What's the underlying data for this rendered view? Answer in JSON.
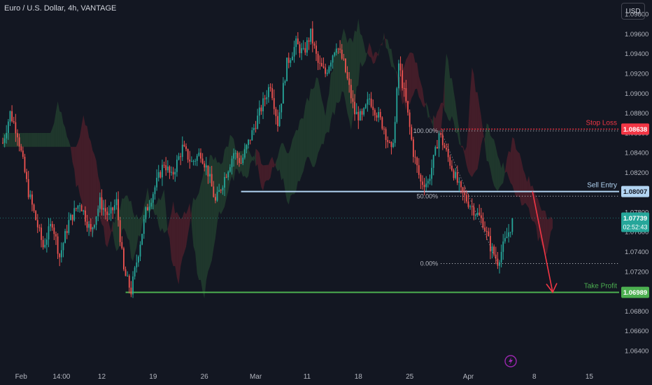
{
  "header": {
    "title": "Euro / U.S. Dollar, 4h, VANTAGE",
    "currency_button": "USD"
  },
  "chart_data": {
    "type": "candlestick",
    "symbol": "Euro / U.S. Dollar",
    "interval": "4h",
    "broker": "VANTAGE",
    "ylim": [
      1.063,
      1.099
    ],
    "y_ticks": [
      "1.09800",
      "1.09600",
      "1.09400",
      "1.09200",
      "1.09000",
      "1.08800",
      "1.08600",
      "1.08400",
      "1.08200",
      "1.08000",
      "1.07800",
      "1.07600",
      "1.07400",
      "1.07200",
      "1.07000",
      "1.06800",
      "1.06600",
      "1.06400"
    ],
    "x_tick_labels": [
      "Feb",
      "14:00",
      "12",
      "19",
      "26",
      "Mar",
      "11",
      "18",
      "25",
      "Apr",
      "8",
      "15"
    ],
    "price_path": [
      [
        1.085,
        0
      ],
      [
        1.088,
        4
      ],
      [
        1.086,
        8
      ],
      [
        1.08,
        14
      ],
      [
        1.0745,
        22
      ],
      [
        1.077,
        27
      ],
      [
        1.0735,
        31
      ],
      [
        1.077,
        36
      ],
      [
        1.079,
        42
      ],
      [
        1.076,
        48
      ],
      [
        1.079,
        53
      ],
      [
        1.0775,
        58
      ],
      [
        1.079,
        62
      ],
      [
        1.072,
        66
      ],
      [
        1.07,
        70
      ],
      [
        1.074,
        74
      ],
      [
        1.078,
        78
      ],
      [
        1.081,
        84
      ],
      [
        1.083,
        88
      ],
      [
        1.0815,
        92
      ],
      [
        1.0845,
        98
      ],
      [
        1.083,
        103
      ],
      [
        1.084,
        108
      ],
      [
        1.082,
        112
      ],
      [
        1.079,
        116
      ],
      [
        1.081,
        120
      ],
      [
        1.084,
        126
      ],
      [
        1.083,
        130
      ],
      [
        1.086,
        136
      ],
      [
        1.089,
        142
      ],
      [
        1.091,
        146
      ],
      [
        1.087,
        150
      ],
      [
        1.093,
        155
      ],
      [
        1.095,
        160
      ],
      [
        1.094,
        164
      ],
      [
        1.096,
        168
      ],
      [
        1.093,
        172
      ],
      [
        1.092,
        176
      ],
      [
        1.095,
        182
      ],
      [
        1.093,
        186
      ],
      [
        1.088,
        192
      ],
      [
        1.0875,
        196
      ],
      [
        1.0895,
        200
      ],
      [
        1.088,
        204
      ],
      [
        1.0865,
        208
      ],
      [
        1.084,
        212
      ],
      [
        1.087,
        214
      ],
      [
        1.093,
        216
      ],
      [
        1.089,
        220
      ],
      [
        1.084,
        224
      ],
      [
        1.081,
        228
      ],
      [
        1.081,
        232
      ],
      [
        1.084,
        236
      ],
      [
        1.086,
        238
      ],
      [
        1.084,
        242
      ],
      [
        1.082,
        246
      ],
      [
        1.08,
        250
      ],
      [
        1.079,
        254
      ],
      [
        1.078,
        258
      ],
      [
        1.077,
        262
      ],
      [
        1.0745,
        266
      ],
      [
        1.073,
        270
      ],
      [
        1.075,
        274
      ],
      [
        1.077,
        278
      ]
    ],
    "fibonacci": [
      {
        "label": "100.00%",
        "price": 1.0862
      },
      {
        "label": "50.00%",
        "price": 1.0796
      },
      {
        "label": "0.00%",
        "price": 1.0728
      }
    ],
    "levels": [
      {
        "name": "Stop Loss",
        "price_label": "1.08638",
        "price": 1.08638,
        "color": "#f23645"
      },
      {
        "name": "Sell Entry",
        "price_label": "1.08007",
        "price": 1.08007,
        "color": "#b2d4f2"
      },
      {
        "name": "Take Profit",
        "price_label": "1.06989",
        "price": 1.06989,
        "color": "#4caf50"
      }
    ],
    "current_price": {
      "price": 1.07739,
      "label": "1.07739",
      "countdown": "02:52:43",
      "color": "#26a69a"
    },
    "candle_colors": {
      "up": "#26a69a",
      "down": "#ef5350"
    },
    "cloud_colors": {
      "bearish": "#f23645",
      "bullish": "#4caf50"
    }
  }
}
